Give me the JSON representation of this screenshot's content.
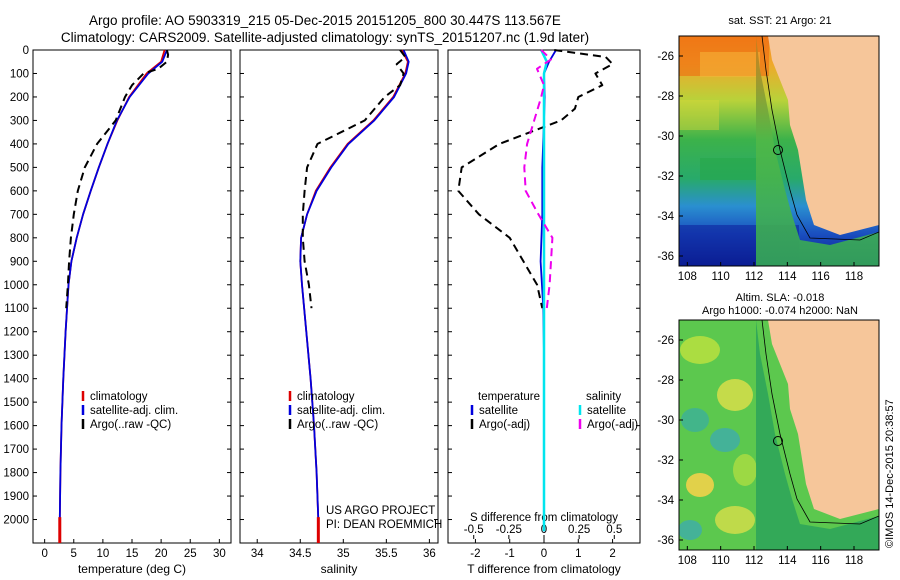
{
  "header": {
    "title_line1": "Argo profile: AO 5903319_215 05-Dec-2015 20151205_800 30.447S 113.567E",
    "title_line2": "Climatology: CARS2009. Satellite-adjusted climatology: synTS_20151207.nc (1.9d later)"
  },
  "maps": {
    "sst_title": "sat. SST: 21 Argo: 21",
    "sla_title_line1": "Altim. SLA: -0.018",
    "sla_title_line2": "Argo h1000: -0.074 h2000: NaN",
    "x_ticks": [
      "108",
      "110",
      "112",
      "114",
      "116",
      "118"
    ],
    "y_ticks": [
      "-26",
      "-28",
      "-30",
      "-32",
      "-34",
      "-36"
    ],
    "land_color": "#f6c69a",
    "argo_position": {
      "lon": 113.567,
      "lat": -30.447
    }
  },
  "stamp": "©IMOS 14-Dec-2015 20:38:57",
  "credit": {
    "line1": "US ARGO PROJECT",
    "line2": "PI: DEAN ROEMMICH"
  },
  "colors": {
    "climatology": "#dd0000",
    "satellite": "#0000dd",
    "argo": "#000000",
    "sal_satellite": "#00e5ee",
    "sal_argo": "#ee00ee"
  },
  "chart_data": [
    {
      "type": "line",
      "xlabel": "temperature (deg C)",
      "ylabel": "",
      "xlim": [
        -2,
        32
      ],
      "ylim": [
        2100,
        0
      ],
      "x_ticks": [
        0,
        5,
        10,
        15,
        20,
        25,
        30
      ],
      "y_ticks": [
        0,
        100,
        200,
        300,
        400,
        500,
        600,
        700,
        800,
        900,
        1000,
        1100,
        1200,
        1300,
        1400,
        1500,
        1600,
        1700,
        1800,
        1900,
        2000
      ],
      "legend": [
        "climatology",
        "satellite-adj. clim.",
        "Argo(..raw -QC)"
      ],
      "legend_position": "bottom-right",
      "series": [
        {
          "name": "climatology",
          "style": "solid",
          "color": "#dd0000",
          "depth": [
            0,
            50,
            100,
            200,
            300,
            400,
            500,
            600,
            700,
            800,
            900,
            1000,
            1200,
            1400,
            1600,
            1800,
            2000,
            2050
          ],
          "values": [
            20.6,
            20.0,
            17.5,
            14.5,
            12.5,
            10.8,
            9.3,
            7.9,
            6.6,
            5.5,
            4.6,
            4.1,
            3.6,
            3.2,
            2.9,
            2.7,
            2.6,
            2.6
          ]
        },
        {
          "name": "satellite-adj. clim.",
          "style": "solid",
          "color": "#0000dd",
          "depth": [
            0,
            50,
            100,
            200,
            300,
            400,
            500,
            600,
            700,
            800,
            900,
            1000,
            1200,
            1400,
            1600,
            1800,
            2000,
            2050
          ],
          "values": [
            21.0,
            20.2,
            17.8,
            14.6,
            12.4,
            10.8,
            9.3,
            7.9,
            6.6,
            5.5,
            4.6,
            4.1,
            3.6,
            3.2,
            2.9,
            2.7,
            2.6,
            2.6
          ]
        },
        {
          "name": "Argo(..raw -QC)",
          "style": "dashed",
          "color": "#000000",
          "depth": [
            0,
            20,
            50,
            80,
            100,
            150,
            200,
            300,
            400,
            500,
            600,
            700,
            800,
            900,
            1000,
            1100
          ],
          "values": [
            21.0,
            21.2,
            21.0,
            19.5,
            17.0,
            15.0,
            13.8,
            12.2,
            9.0,
            6.9,
            5.7,
            5.0,
            4.5,
            4.2,
            4.0,
            3.7
          ]
        }
      ]
    },
    {
      "type": "line",
      "xlabel": "salinity",
      "ylabel": "",
      "xlim": [
        33.8,
        36.1
      ],
      "ylim": [
        2100,
        0
      ],
      "x_ticks": [
        34,
        34.5,
        35,
        35.5,
        36
      ],
      "legend": [
        "climatology",
        "satellite-adj. clim.",
        "Argo(..raw -QC)"
      ],
      "legend_position": "bottom-right",
      "series": [
        {
          "name": "climatology",
          "style": "solid",
          "color": "#dd0000",
          "depth": [
            0,
            50,
            100,
            150,
            200,
            300,
            400,
            500,
            600,
            700,
            800,
            900,
            1000,
            1200,
            1400,
            1600,
            1800,
            2000,
            2050
          ],
          "values": [
            35.68,
            35.75,
            35.72,
            35.65,
            35.58,
            35.35,
            35.05,
            34.85,
            34.68,
            34.58,
            34.51,
            34.5,
            34.52,
            34.57,
            34.62,
            34.66,
            34.69,
            34.71,
            34.71
          ]
        },
        {
          "name": "satellite-adj. clim.",
          "style": "solid",
          "color": "#0000dd",
          "depth": [
            0,
            50,
            100,
            150,
            200,
            300,
            400,
            500,
            600,
            700,
            800,
            900,
            1000,
            1200,
            1400,
            1600,
            1800,
            2000,
            2050
          ],
          "values": [
            35.7,
            35.76,
            35.73,
            35.66,
            35.59,
            35.36,
            35.06,
            34.86,
            34.69,
            34.58,
            34.51,
            34.5,
            34.52,
            34.57,
            34.62,
            34.66,
            34.69,
            34.71,
            34.71
          ]
        },
        {
          "name": "Argo(..raw -QC)",
          "style": "dashed",
          "color": "#000000",
          "depth": [
            0,
            30,
            60,
            100,
            150,
            200,
            300,
            400,
            500,
            600,
            700,
            800,
            900,
            1000,
            1100
          ],
          "values": [
            35.66,
            35.72,
            35.62,
            35.7,
            35.66,
            35.48,
            35.25,
            34.7,
            34.58,
            34.55,
            34.53,
            34.53,
            34.55,
            34.6,
            34.63
          ]
        }
      ]
    },
    {
      "type": "line",
      "xlabel": "T difference from climatology",
      "ylabel": "",
      "xlim": [
        -2.8,
        2.8
      ],
      "ylim": [
        2100,
        0
      ],
      "x_ticks": [
        -2,
        -1,
        0,
        1,
        2
      ],
      "secondary_axis": {
        "label": "S difference from climatology",
        "ticks": [
          "-0.5",
          "-0.25",
          "0",
          "0.25",
          "0.5"
        ]
      },
      "legend_groups": {
        "temperature": [
          "satellite",
          "Argo(-adj)"
        ],
        "salinity": [
          "satellite",
          "Argo(-adj)"
        ]
      },
      "legend_position": "bottom",
      "series": [
        {
          "name": "temperature satellite",
          "style": "solid",
          "color": "#0000dd",
          "depth": [
            0,
            50,
            100,
            200,
            300,
            500,
            700,
            900,
            1100,
            1300,
            2050
          ],
          "values": [
            0.35,
            0.15,
            0.0,
            0.02,
            0.0,
            -0.05,
            -0.05,
            -0.1,
            -0.02,
            0.0,
            0.0
          ]
        },
        {
          "name": "temperature Argo(-adj)",
          "style": "dashed",
          "color": "#000000",
          "depth": [
            0,
            30,
            60,
            100,
            150,
            200,
            250,
            300,
            400,
            500,
            600,
            700,
            800,
            900,
            1000,
            1100
          ],
          "values": [
            0.3,
            1.8,
            2.0,
            1.5,
            1.7,
            1.0,
            0.9,
            0.5,
            -1.3,
            -2.4,
            -2.5,
            -1.9,
            -1.0,
            -0.6,
            -0.2,
            -0.05
          ]
        },
        {
          "name": "salinity satellite",
          "style": "solid",
          "color": "#00e5ee",
          "depth": [
            0,
            50,
            100,
            300,
            600,
            1000,
            1500,
            2050
          ],
          "values": [
            -0.02,
            0.02,
            0.0,
            0.0,
            0.0,
            0.0,
            0.0,
            0.0
          ]
        },
        {
          "name": "salinity Argo(-adj)",
          "style": "dashed",
          "color": "#ee00ee",
          "depth": [
            0,
            40,
            80,
            150,
            200,
            300,
            400,
            500,
            600,
            700,
            800,
            900,
            1000,
            1100
          ],
          "values": [
            -0.02,
            0.05,
            -0.05,
            0.0,
            -0.02,
            -0.07,
            -0.12,
            -0.14,
            -0.13,
            -0.04,
            0.06,
            0.05,
            0.04,
            0.02
          ]
        }
      ]
    }
  ]
}
